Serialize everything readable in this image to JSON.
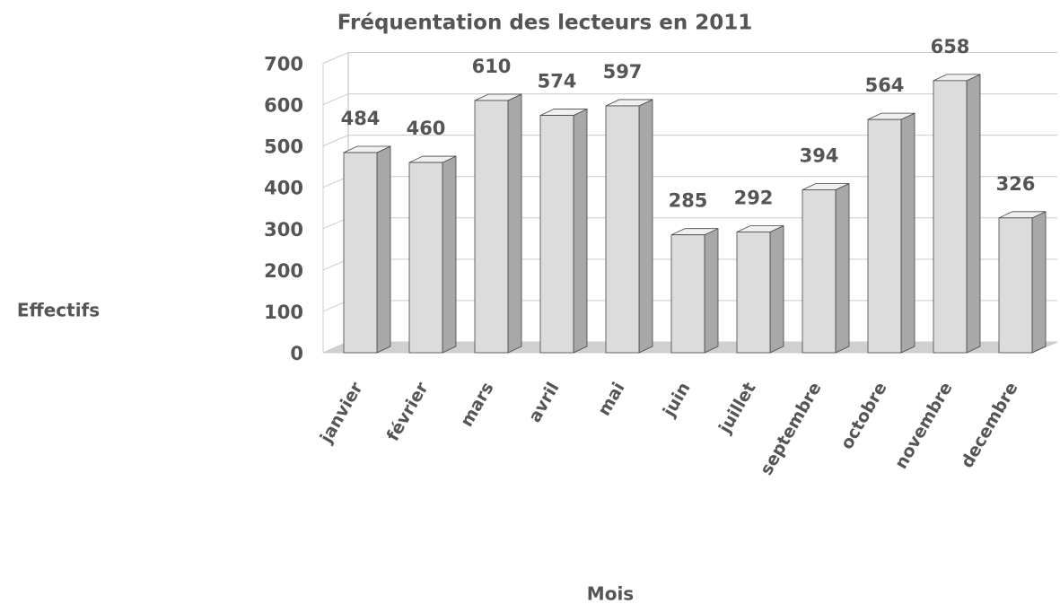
{
  "chart_data": {
    "type": "bar",
    "title": "Fréquentation des lecteurs en 2011",
    "x_label": "Mois",
    "y_label": "Effectifs",
    "categories": [
      "janvier",
      "février",
      "mars",
      "avril",
      "mai",
      "juin",
      "juillet",
      "septembre",
      "octobre",
      "novembre",
      "decembre"
    ],
    "values": [
      484,
      460,
      610,
      574,
      597,
      285,
      292,
      394,
      564,
      658,
      326
    ],
    "color": "#dcdcdc",
    "ylim": [
      0,
      700
    ],
    "yticks": [
      0,
      100,
      200,
      300,
      400,
      500,
      600,
      700
    ],
    "grid": true
  }
}
